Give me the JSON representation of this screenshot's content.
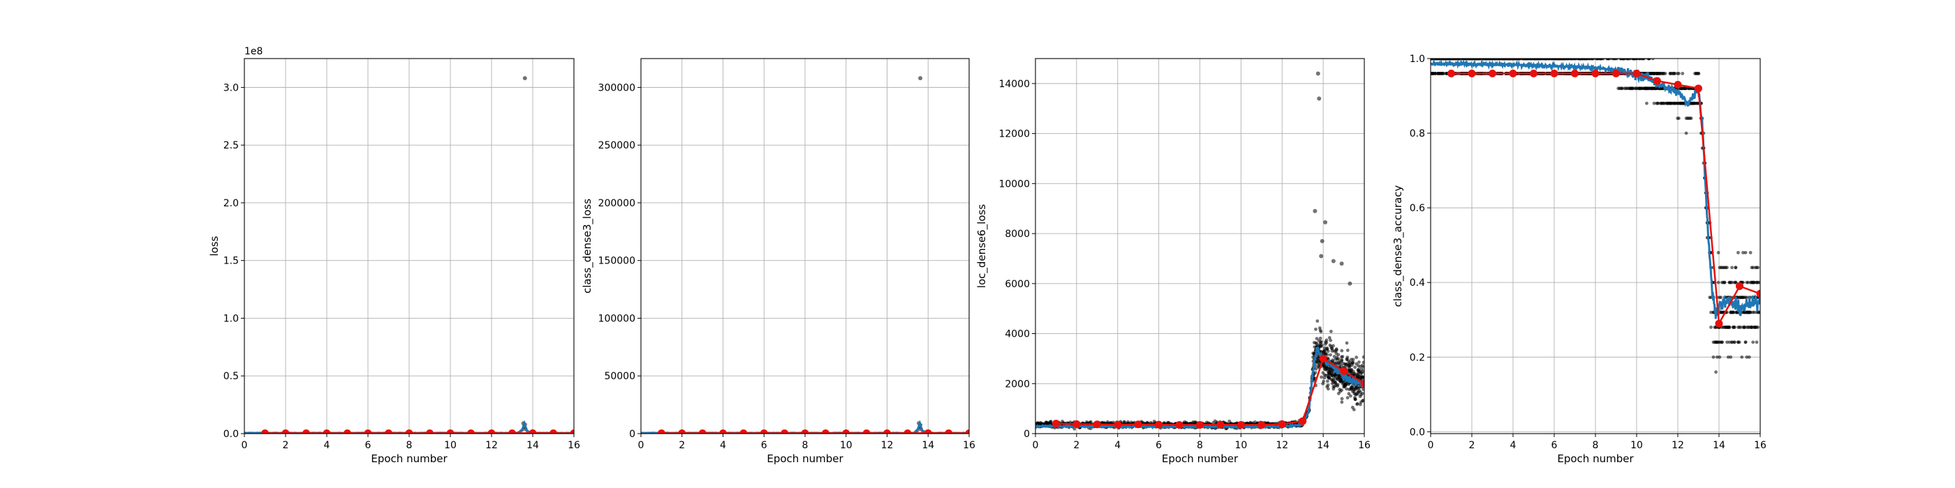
{
  "colors": {
    "scatter": "#000000",
    "smoothed": "#1f77b4",
    "epoch_mean": "#e8100c"
  },
  "chart_data": [
    {
      "type": "line",
      "ylabel": "loss",
      "xlabel": "Epoch number",
      "offset_text": "1e8",
      "xlim": [
        0,
        16
      ],
      "ylim": [
        0,
        3.25
      ],
      "xticks": [
        0,
        2,
        4,
        6,
        8,
        10,
        12,
        14,
        16
      ],
      "xtick_labels": [
        "0",
        "2",
        "4",
        "6",
        "8",
        "10",
        "12",
        "14",
        "16"
      ],
      "yticks": [
        0,
        0.5,
        1.0,
        1.5,
        2.0,
        2.5,
        3.0
      ],
      "ytick_labels": [
        "0.0",
        "0.5",
        "1.0",
        "1.5",
        "2.0",
        "2.5",
        "3.0"
      ],
      "outliers": [
        [
          13.62,
          3.08
        ],
        [
          13.55,
          0.09
        ],
        [
          13.6,
          0.06
        ],
        [
          13.65,
          0.04
        ]
      ],
      "epoch_means": {
        "x": [
          1,
          2,
          3,
          4,
          5,
          6,
          7,
          8,
          9,
          10,
          11,
          12,
          13,
          14,
          15,
          16
        ],
        "y": [
          0.003,
          0.003,
          0.003,
          0.003,
          0.003,
          0.003,
          0.003,
          0.003,
          0.003,
          0.003,
          0.003,
          0.003,
          0.003,
          0.004,
          0.003,
          0.003
        ]
      },
      "smoothed": {
        "x": [
          0,
          2,
          4,
          6,
          8,
          10,
          12,
          13.3,
          13.5,
          13.6,
          13.7,
          13.9,
          14.3,
          16
        ],
        "y": [
          0.003,
          0.003,
          0.003,
          0.003,
          0.003,
          0.003,
          0.003,
          0.003,
          0.04,
          0.09,
          0.03,
          0.005,
          0.003,
          0.003
        ]
      }
    },
    {
      "type": "line",
      "ylabel": "class_dense3_loss",
      "xlabel": "Epoch number",
      "xlim": [
        0,
        16
      ],
      "ylim": [
        0,
        325000
      ],
      "xticks": [
        0,
        2,
        4,
        6,
        8,
        10,
        12,
        14,
        16
      ],
      "xtick_labels": [
        "0",
        "2",
        "4",
        "6",
        "8",
        "10",
        "12",
        "14",
        "16"
      ],
      "yticks": [
        0,
        50000,
        100000,
        150000,
        200000,
        250000,
        300000
      ],
      "ytick_labels": [
        "0",
        "50000",
        "100000",
        "150000",
        "200000",
        "250000",
        "300000"
      ],
      "outliers": [
        [
          13.62,
          308000
        ],
        [
          13.55,
          9000
        ],
        [
          13.6,
          6000
        ],
        [
          13.65,
          4000
        ]
      ],
      "epoch_means": {
        "x": [
          1,
          2,
          3,
          4,
          5,
          6,
          7,
          8,
          9,
          10,
          11,
          12,
          13,
          14,
          15,
          16
        ],
        "y": [
          300,
          300,
          300,
          300,
          300,
          300,
          300,
          300,
          300,
          300,
          300,
          300,
          300,
          400,
          300,
          300
        ]
      },
      "smoothed": {
        "x": [
          0,
          2,
          4,
          6,
          8,
          10,
          12,
          13.3,
          13.5,
          13.6,
          13.7,
          13.9,
          14.3,
          16
        ],
        "y": [
          300,
          300,
          300,
          300,
          300,
          300,
          300,
          300,
          4000,
          9000,
          3000,
          500,
          300,
          300
        ]
      }
    },
    {
      "type": "line",
      "ylabel": "loc_dense6_loss",
      "xlabel": "Epoch number",
      "xlim": [
        0,
        16
      ],
      "ylim": [
        0,
        15000
      ],
      "xticks": [
        0,
        2,
        4,
        6,
        8,
        10,
        12,
        14,
        16
      ],
      "xtick_labels": [
        "0",
        "2",
        "4",
        "6",
        "8",
        "10",
        "12",
        "14",
        "16"
      ],
      "yticks": [
        0,
        2000,
        4000,
        6000,
        8000,
        10000,
        12000,
        14000
      ],
      "ytick_labels": [
        "0",
        "2000",
        "4000",
        "6000",
        "8000",
        "10000",
        "12000",
        "14000"
      ],
      "outliers": [
        [
          13.75,
          14400
        ],
        [
          13.8,
          13400
        ],
        [
          13.6,
          8900
        ],
        [
          14.1,
          8450
        ],
        [
          13.95,
          7700
        ],
        [
          14.5,
          6900
        ],
        [
          14.9,
          6800
        ],
        [
          15.3,
          6000
        ],
        [
          13.9,
          7100
        ]
      ],
      "epoch_means": {
        "x": [
          1,
          2,
          3,
          4,
          5,
          6,
          7,
          8,
          9,
          10,
          11,
          12,
          13,
          14,
          15,
          16
        ],
        "y": [
          400,
          380,
          370,
          360,
          370,
          360,
          350,
          350,
          360,
          350,
          350,
          380,
          500,
          3000,
          2500,
          2000
        ]
      },
      "smoothed": {
        "x": [
          0,
          2,
          4,
          6,
          8,
          10,
          12,
          13,
          13.3,
          13.5,
          13.7,
          14,
          14.5,
          15,
          15.5,
          16
        ],
        "y": [
          300,
          290,
          290,
          280,
          280,
          280,
          290,
          350,
          900,
          2500,
          3400,
          3000,
          2700,
          2300,
          2100,
          2000
        ]
      }
    },
    {
      "type": "line",
      "ylabel": "class_dense3_accuracy",
      "xlabel": "Epoch number",
      "xlim": [
        0,
        16
      ],
      "ylim": [
        -0.005,
        1.0
      ],
      "xticks": [
        0,
        2,
        4,
        6,
        8,
        10,
        12,
        14,
        16
      ],
      "xtick_labels": [
        "0",
        "2",
        "4",
        "6",
        "8",
        "10",
        "12",
        "14",
        "16"
      ],
      "yticks": [
        0,
        0.2,
        0.4,
        0.6,
        0.8,
        1.0
      ],
      "ytick_labels": [
        "0.0",
        "0.2",
        "0.4",
        "0.6",
        "0.8",
        "1.0"
      ],
      "epoch_means": {
        "x": [
          1,
          2,
          3,
          4,
          5,
          6,
          7,
          8,
          9,
          10,
          11,
          12,
          13,
          14,
          15,
          16
        ],
        "y": [
          0.96,
          0.96,
          0.96,
          0.96,
          0.96,
          0.96,
          0.96,
          0.96,
          0.96,
          0.96,
          0.94,
          0.93,
          0.92,
          0.29,
          0.39,
          0.37
        ]
      },
      "smoothed": {
        "x": [
          0,
          2,
          4,
          6,
          8,
          9,
          10,
          10.5,
          11,
          11.5,
          12,
          12.5,
          13,
          13.2,
          13.4,
          13.6,
          13.8,
          14,
          14.5,
          15,
          15.5,
          16
        ],
        "y": [
          0.985,
          0.985,
          0.983,
          0.98,
          0.975,
          0.97,
          0.955,
          0.95,
          0.935,
          0.92,
          0.91,
          0.88,
          0.92,
          0.82,
          0.6,
          0.42,
          0.32,
          0.34,
          0.35,
          0.33,
          0.34,
          0.35
        ]
      }
    }
  ]
}
